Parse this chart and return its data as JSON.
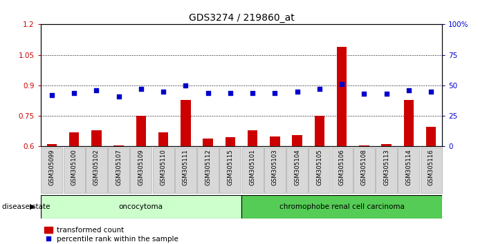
{
  "title": "GDS3274 / 219860_at",
  "samples": [
    "GSM305099",
    "GSM305100",
    "GSM305102",
    "GSM305107",
    "GSM305109",
    "GSM305110",
    "GSM305111",
    "GSM305112",
    "GSM305115",
    "GSM305101",
    "GSM305103",
    "GSM305104",
    "GSM305105",
    "GSM305106",
    "GSM305108",
    "GSM305113",
    "GSM305114",
    "GSM305116"
  ],
  "transformed_count": [
    0.61,
    0.67,
    0.68,
    0.605,
    0.75,
    0.67,
    0.83,
    0.64,
    0.645,
    0.68,
    0.65,
    0.655,
    0.75,
    1.09,
    0.605,
    0.61,
    0.83,
    0.695
  ],
  "percentile_rank": [
    42,
    44,
    46,
    41,
    47,
    45,
    50,
    44,
    44,
    44,
    44,
    45,
    47,
    51,
    43,
    43,
    46,
    45
  ],
  "oncocytoma_count": 9,
  "chromophobe_count": 9,
  "ylim_left": [
    0.6,
    1.2
  ],
  "ylim_right": [
    0,
    100
  ],
  "yticks_left": [
    0.6,
    0.75,
    0.9,
    1.05,
    1.2
  ],
  "yticks_right": [
    0,
    25,
    50,
    75,
    100
  ],
  "bar_color": "#cc0000",
  "scatter_color": "#0000cc",
  "bg_color": "#ffffff",
  "onco_color": "#ccffcc",
  "chrom_color": "#55cc55",
  "tick_label_bg": "#d8d8d8",
  "legend_bar_label": "transformed count",
  "legend_scatter_label": "percentile rank within the sample",
  "disease_state_label": "disease state",
  "oncocytoma_label": "oncocytoma",
  "chromophobe_label": "chromophobe renal cell carcinoma",
  "title_fontsize": 10,
  "axis_fontsize": 7.5,
  "label_fontsize": 7.5
}
